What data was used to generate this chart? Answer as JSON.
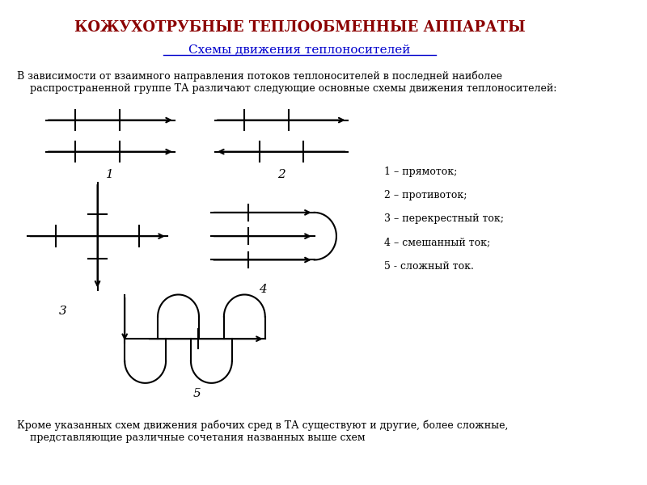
{
  "title": "КОЖУХОТРУБНЫЕ ТЕПЛООБМЕННЫЕ АППАРАТЫ",
  "subtitle": "Схемы движения теплоносителей",
  "body_text": "В зависимости от взаимного направления потоков теплоносителей в последней наиболее\n    распространенной группе ТА различают следующие основные схемы движения теплоносителей:",
  "legend": [
    "1 – прямоток;",
    "2 – противоток;",
    "3 – перекрестный ток;",
    "4 – смешанный ток;",
    "5 - сложный ток."
  ],
  "footer_text": "Кроме указанных схем движения рабочих сред в ТА существуют и другие, более сложные,\n    представляющие различные сочетания названных выше схем",
  "title_color": "#8B0000",
  "subtitle_color": "#0000CC",
  "text_color": "#000000",
  "bg_color": "#FFFFFF"
}
